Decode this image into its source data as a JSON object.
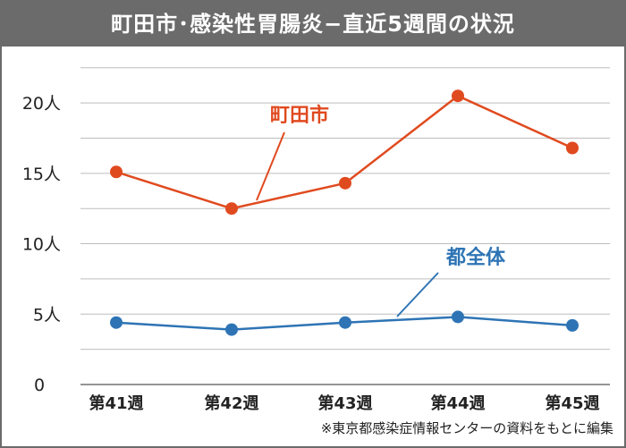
{
  "title": "町田市･感染性胃腸炎−直近5週間の状況",
  "source_note": "※東京都感染症情報センターの資料をもとに編集",
  "colors": {
    "title_bg": "#6b6b6b",
    "machida": "#e04a1f",
    "tokyo": "#2e74b5",
    "grid": "#bdbdbd",
    "text": "#222222"
  },
  "chart_data": {
    "type": "line",
    "title": "町田市･感染性胃腸炎−直近5週間の状況",
    "categories": [
      "第41週",
      "第42週",
      "第43週",
      "第44週",
      "第45週"
    ],
    "y_ticks": [
      {
        "value": 0,
        "label": "0"
      },
      {
        "value": 5,
        "label": "5人"
      },
      {
        "value": 10,
        "label": "10人"
      },
      {
        "value": 15,
        "label": "15人"
      },
      {
        "value": 20,
        "label": "20人"
      }
    ],
    "ylim": [
      0,
      23.5
    ],
    "grid": true,
    "series": [
      {
        "name": "町田市",
        "color": "#e04a1f",
        "values": [
          15.1,
          12.5,
          14.3,
          20.5,
          16.8
        ]
      },
      {
        "name": "都全体",
        "color": "#2e74b5",
        "values": [
          4.4,
          3.9,
          4.4,
          4.8,
          4.2
        ]
      }
    ]
  }
}
